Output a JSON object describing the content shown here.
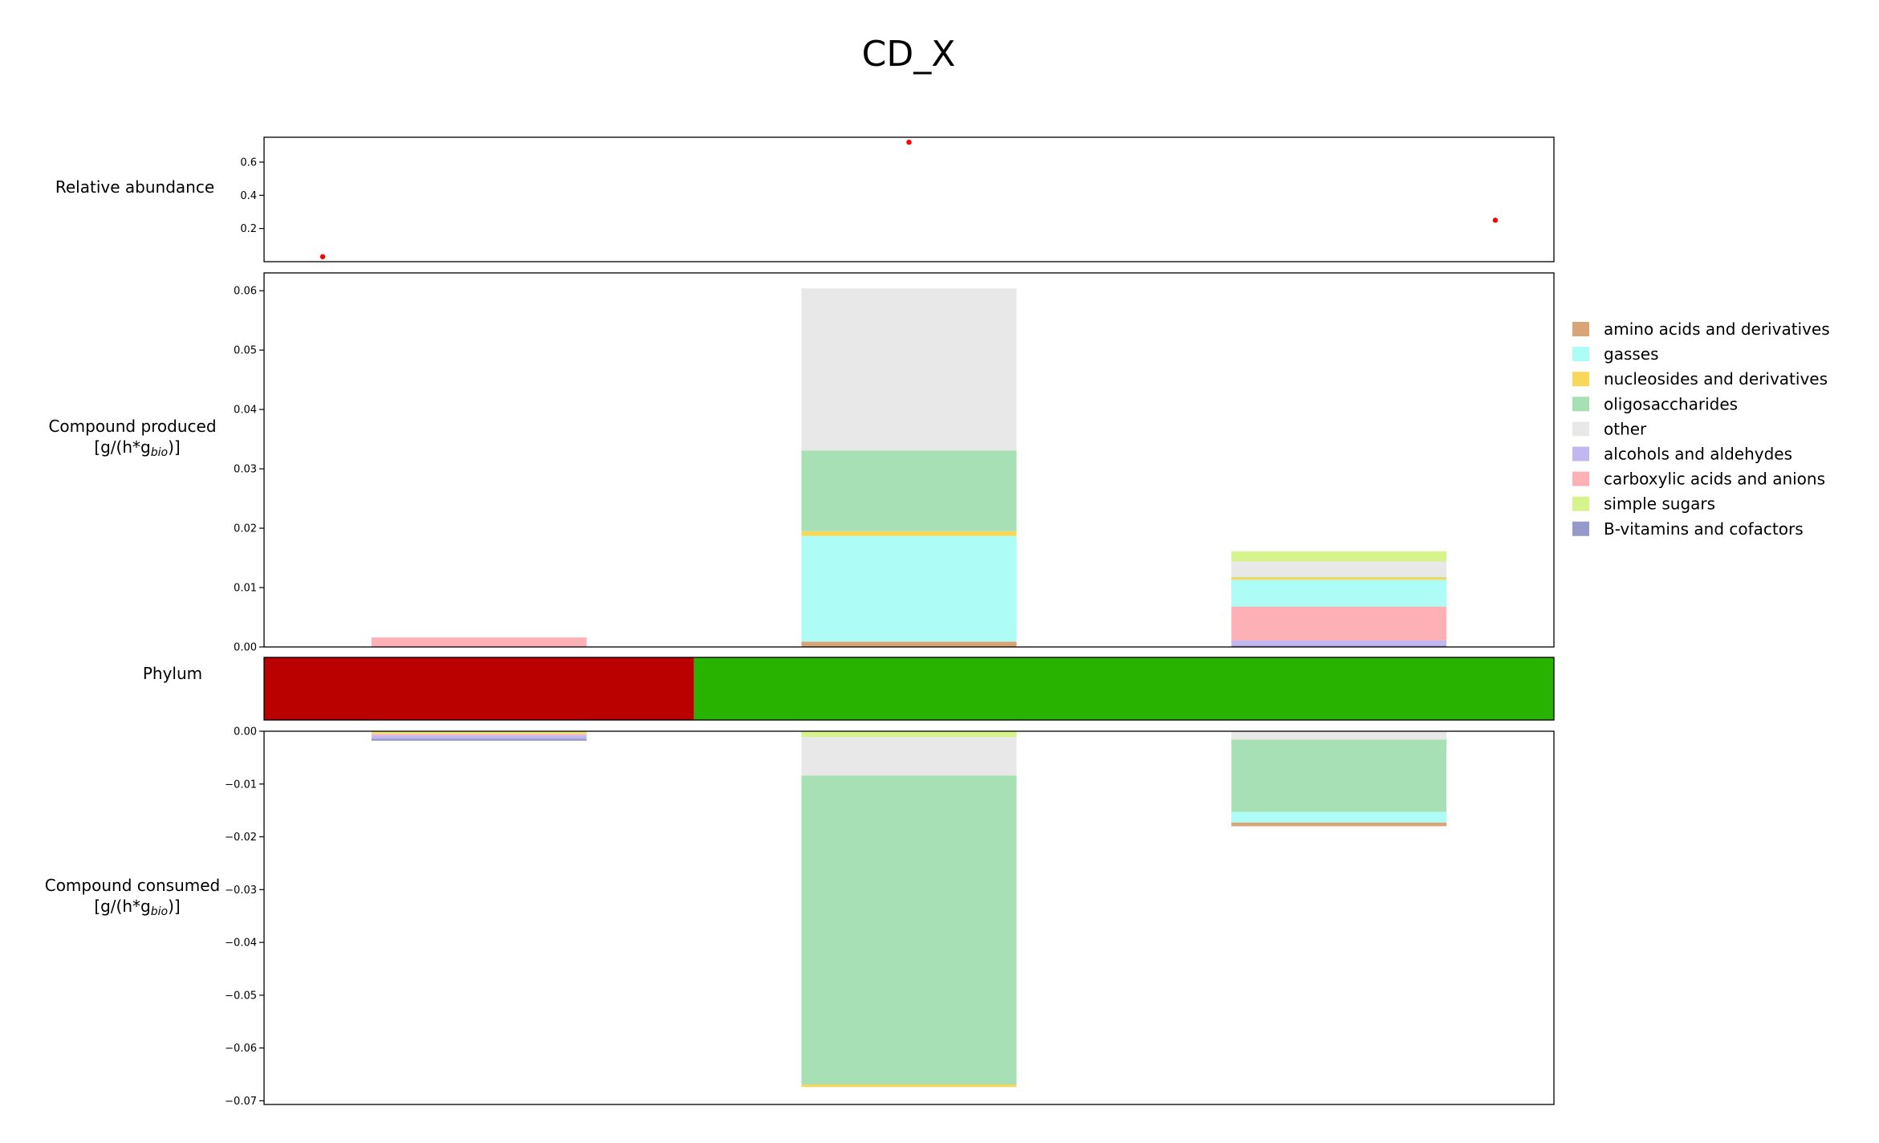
{
  "title": "CD_X",
  "chart_data": [
    {
      "panel": "relative_abundance",
      "type": "scatter",
      "ylabel": "Relative abundance",
      "x": [
        0,
        1,
        2
      ],
      "values": [
        0.03,
        0.72,
        0.25
      ],
      "ylim": [
        0,
        0.75
      ],
      "yticks": [
        0.2,
        0.4,
        0.6
      ],
      "ytick_labels": [
        "0.2",
        "0.4",
        "0.6"
      ],
      "point_color": "#ff0000"
    },
    {
      "panel": "compound_produced",
      "type": "bar",
      "stacked": true,
      "ylabel_line1": "Compound produced",
      "ylabel_line2_prefix": "[g/(h*g",
      "ylabel_line2_sub": "bio",
      "ylabel_line2_suffix": ")]",
      "ylim": [
        0,
        0.063
      ],
      "yticks": [
        0,
        0.01,
        0.02,
        0.03,
        0.04,
        0.05,
        0.06
      ],
      "ytick_labels": [
        "0.00",
        "0.01",
        "0.02",
        "0.03",
        "0.04",
        "0.05",
        "0.06"
      ],
      "categories": [
        0,
        1,
        2
      ],
      "series": [
        {
          "name": "B-vitamins and cofactors",
          "values": [
            0,
            0,
            0.0002
          ]
        },
        {
          "name": "alcohols and aldehydes",
          "values": [
            0,
            0,
            0.0009
          ]
        },
        {
          "name": "amino acids and derivatives",
          "values": [
            0,
            0.0009,
            0
          ]
        },
        {
          "name": "carboxylic acids and anions",
          "values": [
            0.0016,
            0,
            0.0057
          ]
        },
        {
          "name": "gasses",
          "values": [
            0,
            0.0178,
            0.0045
          ]
        },
        {
          "name": "nucleosides and derivatives",
          "values": [
            0,
            0.0008,
            0.0004
          ]
        },
        {
          "name": "oligosaccharides",
          "values": [
            0,
            0.0136,
            0.0001
          ]
        },
        {
          "name": "other",
          "values": [
            0,
            0.0273,
            0.0026
          ]
        },
        {
          "name": "simple sugars",
          "values": [
            0,
            0,
            0.0017
          ]
        }
      ]
    },
    {
      "panel": "phylum",
      "type": "table",
      "ylabel": "Phylum",
      "segments": [
        {
          "from": 0,
          "to": 1,
          "color": "#bb0000"
        },
        {
          "from": 1,
          "to": 3,
          "color": "#27b300"
        }
      ]
    },
    {
      "panel": "compound_consumed",
      "type": "bar",
      "stacked": true,
      "ylabel_line1": "Compound consumed",
      "ylabel_line2_prefix": "[g/(h*g",
      "ylabel_line2_sub": "bio",
      "ylabel_line2_suffix": ")]",
      "ylim": [
        -0.0707,
        0
      ],
      "yticks": [
        0,
        -0.01,
        -0.02,
        -0.03,
        -0.04,
        -0.05,
        -0.06,
        -0.07
      ],
      "ytick_labels": [
        "0.00",
        "−0.01",
        "−0.02",
        "−0.03",
        "−0.04",
        "−0.05",
        "−0.06",
        "−0.07"
      ],
      "categories": [
        0,
        1,
        2
      ],
      "series": [
        {
          "name": "nucleosides and derivatives",
          "values": [
            -0.0003,
            0,
            0
          ]
        },
        {
          "name": "simple sugars",
          "values": [
            -0.0002,
            -0.0011,
            0
          ]
        },
        {
          "name": "other",
          "values": [
            0,
            -0.0073,
            -0.0016
          ]
        },
        {
          "name": "carboxylic acids and anions",
          "values": [
            -0.0003,
            0,
            0
          ]
        },
        {
          "name": "alcohols and aldehydes",
          "values": [
            -0.0006,
            0,
            0
          ]
        },
        {
          "name": "B-vitamins and cofactors",
          "values": [
            -0.0004,
            0,
            0
          ]
        },
        {
          "name": "oligosaccharides",
          "values": [
            0,
            -0.0585,
            -0.0137
          ]
        },
        {
          "name": "gasses",
          "values": [
            0,
            0,
            -0.002
          ]
        },
        {
          "name": "amino acids and derivatives",
          "values": [
            0,
            0,
            -0.0007
          ]
        },
        {
          "name": "nucleosides and derivatives",
          "values": [
            0,
            -0.0005,
            0
          ]
        }
      ]
    }
  ],
  "legend": {
    "placement": "right",
    "items": [
      {
        "label": "amino acids and derivatives",
        "color": "#d9a577"
      },
      {
        "label": "gasses",
        "color": "#adfcf5"
      },
      {
        "label": "nucleosides and derivatives",
        "color": "#f7d85a"
      },
      {
        "label": "oligosaccharides",
        "color": "#a8e0b6"
      },
      {
        "label": "other",
        "color": "#e8e8e8"
      },
      {
        "label": "alcohols and aldehydes",
        "color": "#c2b8ef"
      },
      {
        "label": "carboxylic acids and anions",
        "color": "#fdb1b6"
      },
      {
        "label": "simple sugars",
        "color": "#d7f38c"
      },
      {
        "label": "B-vitamins and cofactors",
        "color": "#9599cc"
      }
    ]
  }
}
